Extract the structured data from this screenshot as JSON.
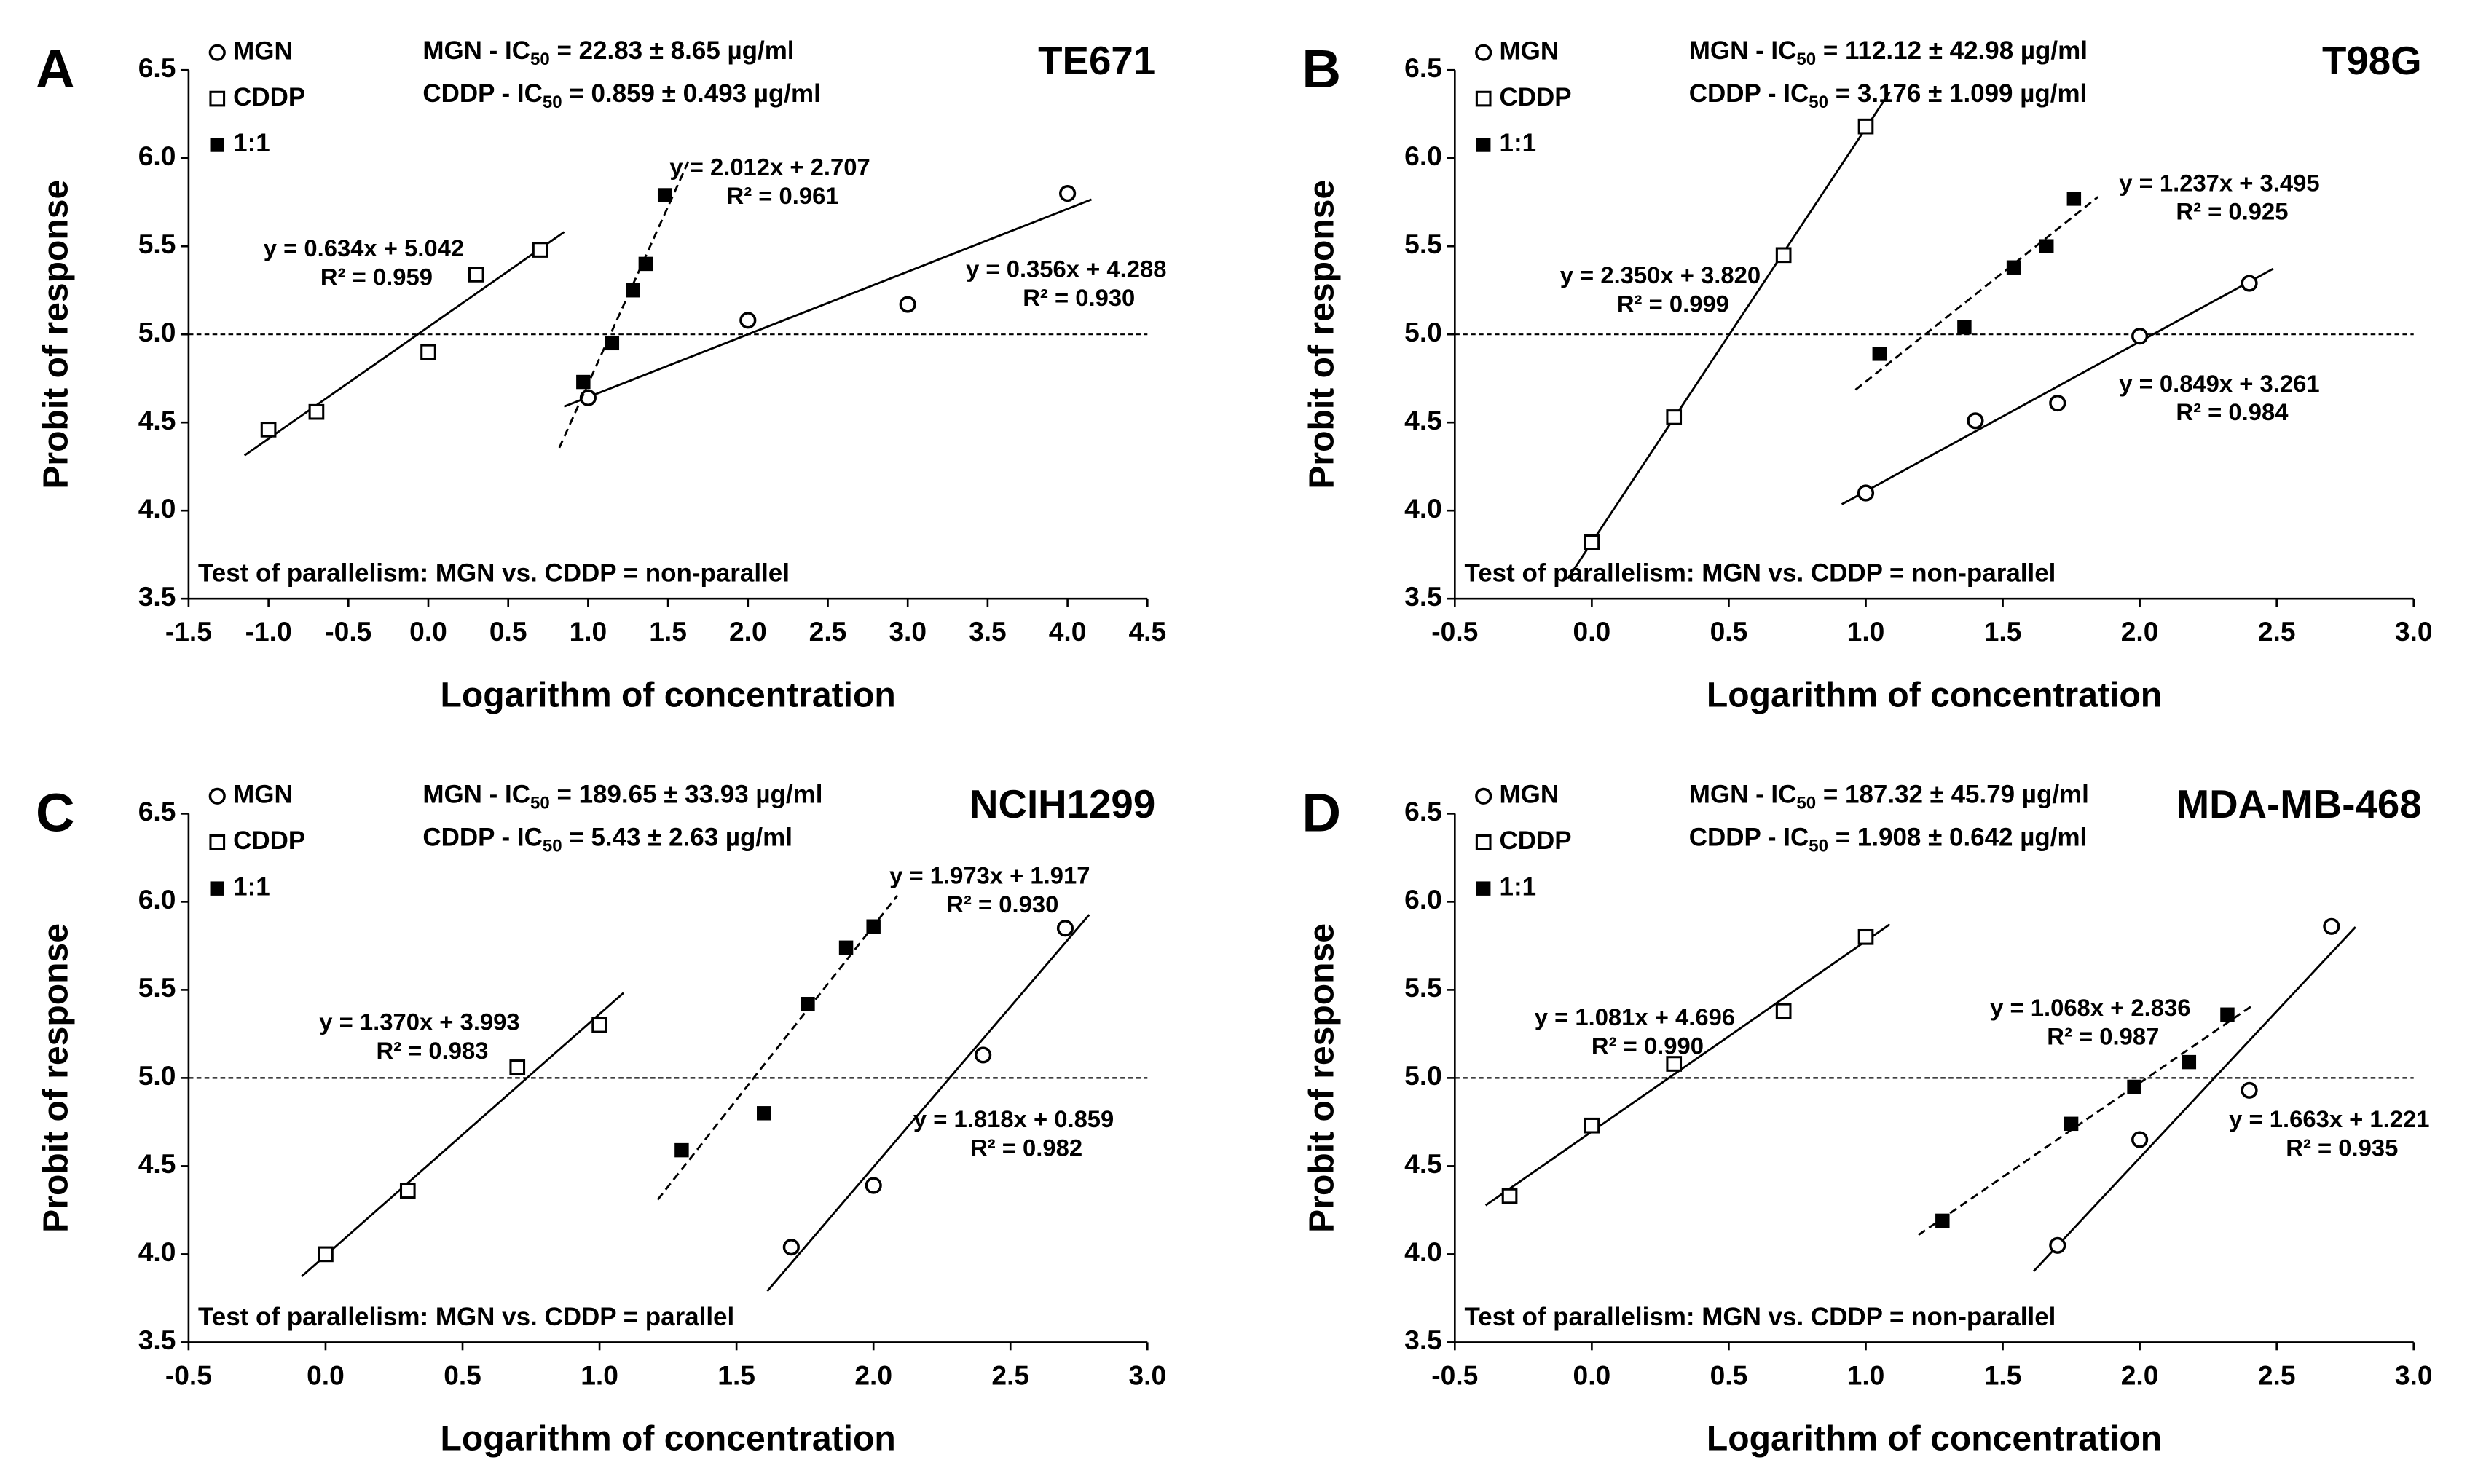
{
  "chart_data": [
    {
      "type": "scatter",
      "panel": "A",
      "title": "TE671",
      "xlabel": "Logarithm of concentration",
      "ylabel": "Probit of response",
      "ic50": [
        {
          "prefix": "MGN - IC",
          "sub": "50",
          "suffix": " = 22.83 ± 8.65 µg/ml"
        },
        {
          "prefix": "CDDP - IC",
          "sub": "50",
          "suffix": " = 0.859 ± 0.493 µg/ml"
        }
      ],
      "note": "Test of parallelism: MGN vs. CDDP = non-parallel",
      "reference_line": 5,
      "xlim": [
        -1.5,
        4.5
      ],
      "xticks": [
        {
          "value": -1.5,
          "label": "-1.5"
        },
        {
          "value": -1,
          "label": "-1.0"
        },
        {
          "value": -0.5,
          "label": "-0.5"
        },
        {
          "value": 0,
          "label": "0.0"
        },
        {
          "value": 0.5,
          "label": "0.5"
        },
        {
          "value": 1,
          "label": "1.0"
        },
        {
          "value": 1.5,
          "label": "1.5"
        },
        {
          "value": 2,
          "label": "2.0"
        },
        {
          "value": 2.5,
          "label": "2.5"
        },
        {
          "value": 3,
          "label": "3.0"
        },
        {
          "value": 3.5,
          "label": "3.5"
        },
        {
          "value": 4,
          "label": "4.0"
        },
        {
          "value": 4.5,
          "label": "4.5"
        }
      ],
      "ylim": [
        3.5,
        6.5
      ],
      "yticks": [
        {
          "value": 3.5,
          "label": "3.5"
        },
        {
          "value": 4,
          "label": "4.0"
        },
        {
          "value": 4.5,
          "label": "4.5"
        },
        {
          "value": 5,
          "label": "5.0"
        },
        {
          "value": 5.5,
          "label": "5.5"
        },
        {
          "value": 6,
          "label": "6.0"
        },
        {
          "value": 6.5,
          "label": "6.5"
        }
      ],
      "series": [
        {
          "name": "MGN",
          "marker": "open-circle",
          "line": "solid",
          "color": "#000000",
          "x": [
            1,
            2,
            3,
            4
          ],
          "values": [
            4.64,
            5.08,
            5.17,
            5.8
          ],
          "fit": {
            "equation": "y = 0.356x + 4.288",
            "r2": "R² = 0.930",
            "slope": 0.356,
            "intercept": 4.288
          }
        },
        {
          "name": "CDDP",
          "marker": "open-square",
          "line": "solid",
          "color": "#000000",
          "x": [
            -1,
            -0.7,
            0,
            0.3,
            0.7
          ],
          "values": [
            4.46,
            4.56,
            4.9,
            5.34,
            5.48
          ],
          "fit": {
            "equation": "y = 0.634x + 5.042",
            "r2": "R² = 0.959",
            "slope": 0.634,
            "intercept": 5.042
          }
        },
        {
          "name": "1:1",
          "marker": "filled-square",
          "line": "dashed",
          "color": "#000000",
          "x": [
            0.97,
            1.15,
            1.28,
            1.36,
            1.48
          ],
          "values": [
            4.73,
            4.95,
            5.25,
            5.4,
            5.79
          ],
          "fit": {
            "equation": "y = 2.012x + 2.707",
            "r2": "R² = 0.961",
            "slope": 2.012,
            "intercept": 2.707
          }
        }
      ]
    },
    {
      "type": "scatter",
      "panel": "B",
      "title": "T98G",
      "xlabel": "Logarithm of concentration",
      "ylabel": "Probit of response",
      "ic50": [
        {
          "prefix": "MGN - IC",
          "sub": "50",
          "suffix": " = 112.12 ± 42.98 µg/ml"
        },
        {
          "prefix": "CDDP - IC",
          "sub": "50",
          "suffix": " = 3.176 ± 1.099 µg/ml"
        }
      ],
      "note": "Test of parallelism: MGN vs. CDDP = non-parallel",
      "reference_line": 5,
      "xlim": [
        -0.5,
        3
      ],
      "xticks": [
        {
          "value": -0.5,
          "label": "-0.5"
        },
        {
          "value": 0,
          "label": "0.0"
        },
        {
          "value": 0.5,
          "label": "0.5"
        },
        {
          "value": 1,
          "label": "1.0"
        },
        {
          "value": 1.5,
          "label": "1.5"
        },
        {
          "value": 2,
          "label": "2.0"
        },
        {
          "value": 2.5,
          "label": "2.5"
        },
        {
          "value": 3,
          "label": "3.0"
        }
      ],
      "ylim": [
        3.5,
        6.5
      ],
      "yticks": [
        {
          "value": 3.5,
          "label": "3.5"
        },
        {
          "value": 4,
          "label": "4.0"
        },
        {
          "value": 4.5,
          "label": "4.5"
        },
        {
          "value": 5,
          "label": "5.0"
        },
        {
          "value": 5.5,
          "label": "5.5"
        },
        {
          "value": 6,
          "label": "6.0"
        },
        {
          "value": 6.5,
          "label": "6.5"
        }
      ],
      "series": [
        {
          "name": "MGN",
          "marker": "open-circle",
          "line": "solid",
          "color": "#000000",
          "x": [
            1,
            1.4,
            1.7,
            2,
            2.4
          ],
          "values": [
            4.1,
            4.51,
            4.61,
            4.99,
            5.29
          ],
          "fit": {
            "equation": "y = 0.849x + 3.261",
            "r2": "R² = 0.984",
            "slope": 0.849,
            "intercept": 3.261
          }
        },
        {
          "name": "CDDP",
          "marker": "open-square",
          "line": "solid",
          "color": "#000000",
          "x": [
            0,
            0.3,
            0.7,
            1
          ],
          "values": [
            3.82,
            4.53,
            5.45,
            6.18
          ],
          "fit": {
            "equation": "y = 2.350x + 3.820",
            "r2": "R² = 0.999",
            "slope": 2.35,
            "intercept": 3.82
          }
        },
        {
          "name": "1:1",
          "marker": "filled-square",
          "line": "dashed",
          "color": "#000000",
          "x": [
            1.05,
            1.36,
            1.54,
            1.66,
            1.76
          ],
          "values": [
            4.89,
            5.04,
            5.38,
            5.5,
            5.77
          ],
          "fit": {
            "equation": "y = 1.237x + 3.495",
            "r2": "R² = 0.925",
            "slope": 1.237,
            "intercept": 3.495
          }
        }
      ]
    },
    {
      "type": "scatter",
      "panel": "C",
      "title": "NCIH1299",
      "xlabel": "Logarithm of concentration",
      "ylabel": "Probit of response",
      "ic50": [
        {
          "prefix": "MGN - IC",
          "sub": "50",
          "suffix": " = 189.65 ± 33.93 µg/ml"
        },
        {
          "prefix": "CDDP - IC",
          "sub": "50",
          "suffix": " = 5.43 ± 2.63 µg/ml"
        }
      ],
      "note": "Test of parallelism: MGN vs. CDDP = parallel",
      "reference_line": 5,
      "xlim": [
        -0.5,
        3
      ],
      "xticks": [
        {
          "value": -0.5,
          "label": "-0.5"
        },
        {
          "value": 0,
          "label": "0.0"
        },
        {
          "value": 0.5,
          "label": "0.5"
        },
        {
          "value": 1,
          "label": "1.0"
        },
        {
          "value": 1.5,
          "label": "1.5"
        },
        {
          "value": 2,
          "label": "2.0"
        },
        {
          "value": 2.5,
          "label": "2.5"
        },
        {
          "value": 3,
          "label": "3.0"
        }
      ],
      "ylim": [
        3.5,
        6.5
      ],
      "yticks": [
        {
          "value": 3.5,
          "label": "3.5"
        },
        {
          "value": 4,
          "label": "4.0"
        },
        {
          "value": 4.5,
          "label": "4.5"
        },
        {
          "value": 5,
          "label": "5.0"
        },
        {
          "value": 5.5,
          "label": "5.5"
        },
        {
          "value": 6,
          "label": "6.0"
        },
        {
          "value": 6.5,
          "label": "6.5"
        }
      ],
      "series": [
        {
          "name": "MGN",
          "marker": "open-circle",
          "line": "solid",
          "color": "#000000",
          "x": [
            1.7,
            2,
            2.4,
            2.7
          ],
          "values": [
            4.04,
            4.39,
            5.13,
            5.85
          ],
          "fit": {
            "equation": "y = 1.818x + 0.859",
            "r2": "R² = 0.982",
            "slope": 1.818,
            "intercept": 0.859
          }
        },
        {
          "name": "CDDP",
          "marker": "open-square",
          "line": "solid",
          "color": "#000000",
          "x": [
            0,
            0.3,
            0.7,
            1
          ],
          "values": [
            4,
            4.36,
            5.06,
            5.3
          ],
          "fit": {
            "equation": "y = 1.370x + 3.993",
            "r2": "R² = 0.983",
            "slope": 1.37,
            "intercept": 3.993
          }
        },
        {
          "name": "1:1",
          "marker": "filled-square",
          "line": "dashed",
          "color": "#000000",
          "x": [
            1.3,
            1.6,
            1.76,
            1.9,
            2
          ],
          "values": [
            4.59,
            4.8,
            5.42,
            5.74,
            5.86
          ],
          "fit": {
            "equation": "y = 1.973x + 1.917",
            "r2": "R² = 0.930",
            "slope": 1.973,
            "intercept": 1.917
          }
        }
      ]
    },
    {
      "type": "scatter",
      "panel": "D",
      "title": "MDA-MB-468",
      "xlabel": "Logarithm of concentration",
      "ylabel": "Probit of response",
      "ic50": [
        {
          "prefix": "MGN - IC",
          "sub": "50",
          "suffix": " = 187.32 ± 45.79 µg/ml"
        },
        {
          "prefix": "CDDP - IC",
          "sub": "50",
          "suffix": " = 1.908 ± 0.642 µg/ml"
        }
      ],
      "note": "Test of parallelism: MGN vs. CDDP = non-parallel",
      "reference_line": 5,
      "xlim": [
        -0.5,
        3
      ],
      "xticks": [
        {
          "value": -0.5,
          "label": "-0.5"
        },
        {
          "value": 0,
          "label": "0.0"
        },
        {
          "value": 0.5,
          "label": "0.5"
        },
        {
          "value": 1,
          "label": "1.0"
        },
        {
          "value": 1.5,
          "label": "1.5"
        },
        {
          "value": 2,
          "label": "2.0"
        },
        {
          "value": 2.5,
          "label": "2.5"
        },
        {
          "value": 3,
          "label": "3.0"
        }
      ],
      "ylim": [
        3.5,
        6.5
      ],
      "yticks": [
        {
          "value": 3.5,
          "label": "3.5"
        },
        {
          "value": 4,
          "label": "4.0"
        },
        {
          "value": 4.5,
          "label": "4.5"
        },
        {
          "value": 5,
          "label": "5.0"
        },
        {
          "value": 5.5,
          "label": "5.5"
        },
        {
          "value": 6,
          "label": "6.0"
        },
        {
          "value": 6.5,
          "label": "6.5"
        }
      ],
      "series": [
        {
          "name": "MGN",
          "marker": "open-circle",
          "line": "solid",
          "color": "#000000",
          "x": [
            1.7,
            2,
            2.4,
            2.7
          ],
          "values": [
            4.05,
            4.65,
            4.93,
            5.86
          ],
          "fit": {
            "equation": "y = 1.663x + 1.221",
            "r2": "R² = 0.935",
            "slope": 1.663,
            "intercept": 1.221
          }
        },
        {
          "name": "CDDP",
          "marker": "open-square",
          "line": "solid",
          "color": "#000000",
          "x": [
            -0.3,
            0,
            0.3,
            0.7,
            1
          ],
          "values": [
            4.33,
            4.73,
            5.08,
            5.38,
            5.8
          ],
          "fit": {
            "equation": "y = 1.081x + 4.696",
            "r2": "R² = 0.990",
            "slope": 1.081,
            "intercept": 4.696
          }
        },
        {
          "name": "1:1",
          "marker": "filled-square",
          "line": "dashed",
          "color": "#000000",
          "x": [
            1.28,
            1.75,
            1.98,
            2.18,
            2.32
          ],
          "values": [
            4.19,
            4.74,
            4.95,
            5.09,
            5.36
          ],
          "fit": {
            "equation": "y = 1.068x + 2.836",
            "r2": "R² = 0.987",
            "slope": 1.068,
            "intercept": 2.836
          }
        }
      ]
    }
  ]
}
